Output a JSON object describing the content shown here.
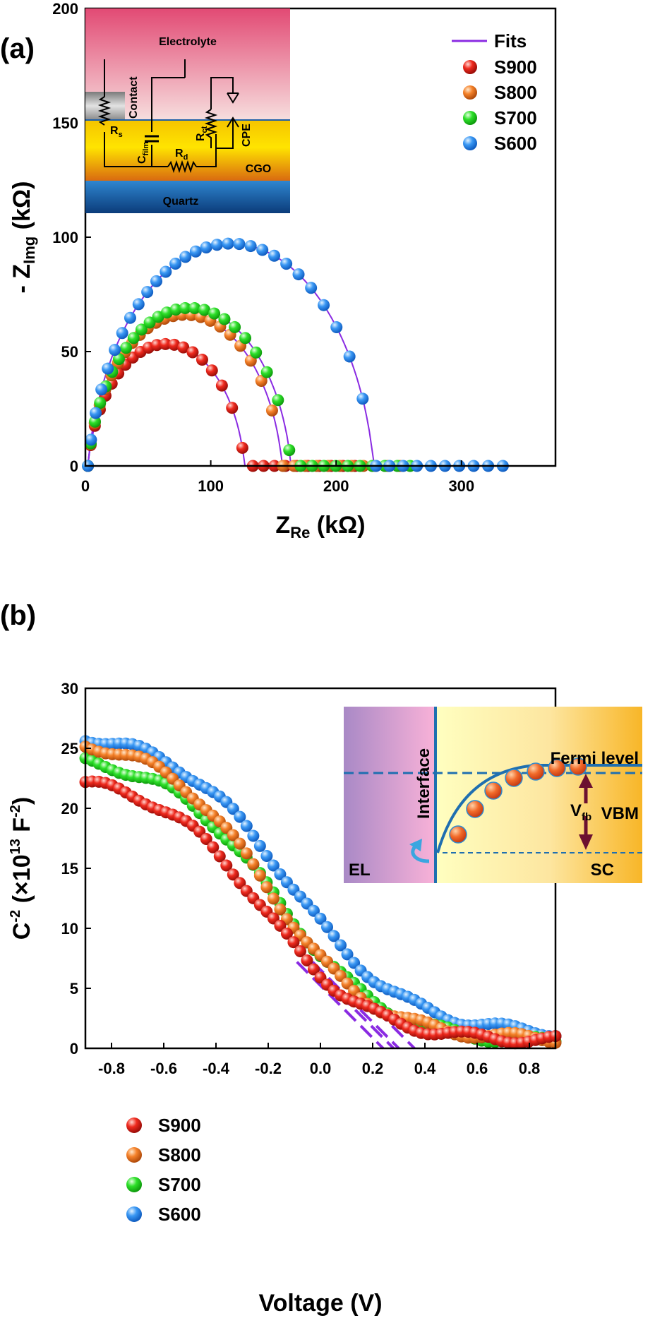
{
  "panel_a": {
    "label": "(a)",
    "chart_data": {
      "type": "scatter",
      "xlabel_main": "Z",
      "xlabel_sub": "Re",
      "xlabel_unit": " (kΩ)",
      "ylabel_main": "- Z",
      "ylabel_sub": "Img",
      "ylabel_unit": " (kΩ)",
      "xlim": [
        0,
        375
      ],
      "ylim": [
        0,
        200
      ],
      "xticks": [
        0,
        100,
        200,
        300
      ],
      "yticks": [
        0,
        50,
        100,
        150,
        200
      ],
      "fit_label": "Fits",
      "fit_color": "#8a2be2",
      "series": [
        {
          "name": "S900",
          "color": "#e8201a",
          "rct": 125,
          "cpe_n": 0.9,
          "end": 215,
          "count": 30
        },
        {
          "name": "S800",
          "color": "#f07a25",
          "rct": 155,
          "cpe_n": 0.9,
          "end": 251,
          "count": 34
        },
        {
          "name": "S700",
          "color": "#22e01e",
          "rct": 162,
          "cpe_n": 0.9,
          "end": 259,
          "count": 34
        },
        {
          "name": "S600",
          "color": "#2f8cf0",
          "rct": 228,
          "cpe_n": 0.9,
          "end": 333,
          "count": 38
        }
      ]
    },
    "inset": {
      "electrolyte": "Electrolyte",
      "contact": "Contact",
      "cgo": "CGO",
      "quartz": "Quartz",
      "rs": "R",
      "rs_sub": "s",
      "cfilm": "C",
      "cfilm_sub": "film",
      "rct": "R",
      "rct_sub": "ct",
      "rd": "R",
      "rd_sub": "d",
      "cpe": "CPE"
    }
  },
  "panel_b": {
    "label": "(b)",
    "chart_data": {
      "type": "scatter",
      "xlabel": "Voltage (V)",
      "ylabel_main": "C",
      "ylabel_sup": "-2",
      "ylabel_mid": " (×10",
      "ylabel_sup2": "13",
      "ylabel_unit": " F",
      "ylabel_sup3": "-2",
      "ylabel_close": ")",
      "xlim": [
        -0.9,
        0.9
      ],
      "ylim": [
        0,
        30
      ],
      "xticks": [
        -0.8,
        -0.6,
        -0.4,
        -0.2,
        0.0,
        0.2,
        0.4,
        0.6,
        0.8
      ],
      "xticklabels": [
        "-0.8",
        "-0.6",
        "-0.4",
        "-0.2",
        "0.0",
        "0.2",
        "0.4",
        "0.6",
        "0.8"
      ],
      "yticks": [
        0,
        5,
        10,
        15,
        20,
        25,
        30
      ],
      "fit_color": "#8a2be2",
      "series": [
        {
          "name": "S900",
          "color": "#e8201a",
          "top": 22.8,
          "floor": 0.6,
          "mid": -0.22,
          "width": 0.2,
          "vfb": 0.24
        },
        {
          "name": "S800",
          "color": "#f07a25",
          "top": 26.0,
          "floor": 0.7,
          "mid": -0.2,
          "width": 0.2,
          "vfb": 0.28
        },
        {
          "name": "S700",
          "color": "#22e01e",
          "top": 24.6,
          "floor": 0.4,
          "mid": -0.17,
          "width": 0.21,
          "vfb": 0.3
        },
        {
          "name": "S600",
          "color": "#2f8cf0",
          "top": 26.6,
          "floor": 1.1,
          "mid": -0.12,
          "width": 0.22,
          "vfb": 0.36
        }
      ]
    },
    "inset": {
      "fermi": "Fermi level",
      "interface": "Interface",
      "vbm": "VBM",
      "vfb": "V",
      "vfb_sub": "fb",
      "el": "EL",
      "sc": "SC"
    }
  }
}
